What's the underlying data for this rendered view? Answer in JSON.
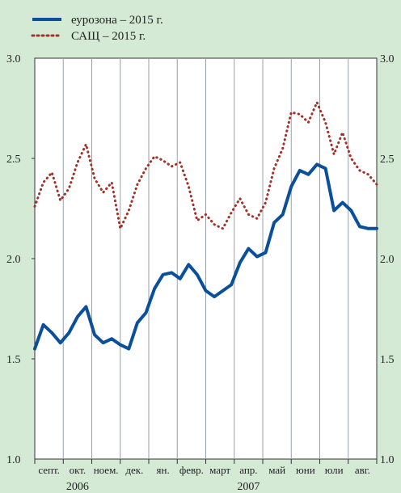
{
  "chart_data": {
    "type": "line",
    "legend": [
      {
        "label": "еурозона – 2015 г.",
        "color": "#0a4f9c",
        "style": "solid"
      },
      {
        "label": "САЩ – 2015 г.",
        "color": "#a0322a",
        "style": "dotted"
      }
    ],
    "y_ticks": [
      "1.0",
      "1.5",
      "2.0",
      "2.5",
      "3.0"
    ],
    "y_right_ticks": [
      "1.0",
      "1.5",
      "2.0",
      "2.5",
      "3.0"
    ],
    "ylim": [
      1.0,
      3.0
    ],
    "x_months": [
      "септ.",
      "окт.",
      "ноем.",
      "дек.",
      "ян.",
      "февр.",
      "март",
      "апр.",
      "май",
      "юни",
      "юли",
      "авг."
    ],
    "x_years": [
      {
        "label": "2006",
        "month_index": 1.5
      },
      {
        "label": "2007",
        "month_index": 7.5
      }
    ],
    "grid": true,
    "legend_position": "top-left",
    "series": [
      {
        "name": "еурозона – 2015 г.",
        "color": "#0a4f9c",
        "x": [
          0,
          0.3,
          0.6,
          0.9,
          1.2,
          1.5,
          1.8,
          2.1,
          2.4,
          2.7,
          3.0,
          3.3,
          3.6,
          3.9,
          4.2,
          4.5,
          4.8,
          5.1,
          5.4,
          5.7,
          6.0,
          6.3,
          6.6,
          6.9,
          7.2,
          7.5,
          7.8,
          8.1,
          8.4,
          8.7,
          9.0,
          9.3,
          9.6,
          9.9,
          10.2,
          10.5,
          10.8,
          11.1,
          11.4,
          11.7,
          12.0
        ],
        "values": [
          1.55,
          1.67,
          1.63,
          1.58,
          1.63,
          1.71,
          1.76,
          1.62,
          1.58,
          1.6,
          1.57,
          1.55,
          1.68,
          1.73,
          1.85,
          1.92,
          1.93,
          1.9,
          1.97,
          1.92,
          1.84,
          1.81,
          1.84,
          1.87,
          1.98,
          2.05,
          2.01,
          2.03,
          2.18,
          2.22,
          2.36,
          2.44,
          2.42,
          2.47,
          2.45,
          2.24,
          2.28,
          2.24,
          2.16,
          2.15,
          2.15
        ]
      },
      {
        "name": "САЩ – 2015 г.",
        "color": "#a0322a",
        "x": [
          0,
          0.3,
          0.6,
          0.9,
          1.2,
          1.5,
          1.8,
          2.1,
          2.4,
          2.7,
          3.0,
          3.3,
          3.6,
          3.9,
          4.2,
          4.5,
          4.8,
          5.1,
          5.4,
          5.7,
          6.0,
          6.3,
          6.6,
          6.9,
          7.2,
          7.5,
          7.8,
          8.1,
          8.4,
          8.7,
          9.0,
          9.3,
          9.6,
          9.9,
          10.2,
          10.5,
          10.8,
          11.1,
          11.4,
          11.7,
          12.0
        ],
        "values": [
          2.26,
          2.38,
          2.43,
          2.29,
          2.35,
          2.48,
          2.57,
          2.4,
          2.33,
          2.38,
          2.15,
          2.24,
          2.37,
          2.45,
          2.51,
          2.49,
          2.46,
          2.48,
          2.36,
          2.19,
          2.22,
          2.17,
          2.15,
          2.23,
          2.3,
          2.22,
          2.2,
          2.28,
          2.45,
          2.55,
          2.73,
          2.72,
          2.68,
          2.78,
          2.68,
          2.52,
          2.63,
          2.5,
          2.44,
          2.42,
          2.37
        ]
      }
    ]
  }
}
